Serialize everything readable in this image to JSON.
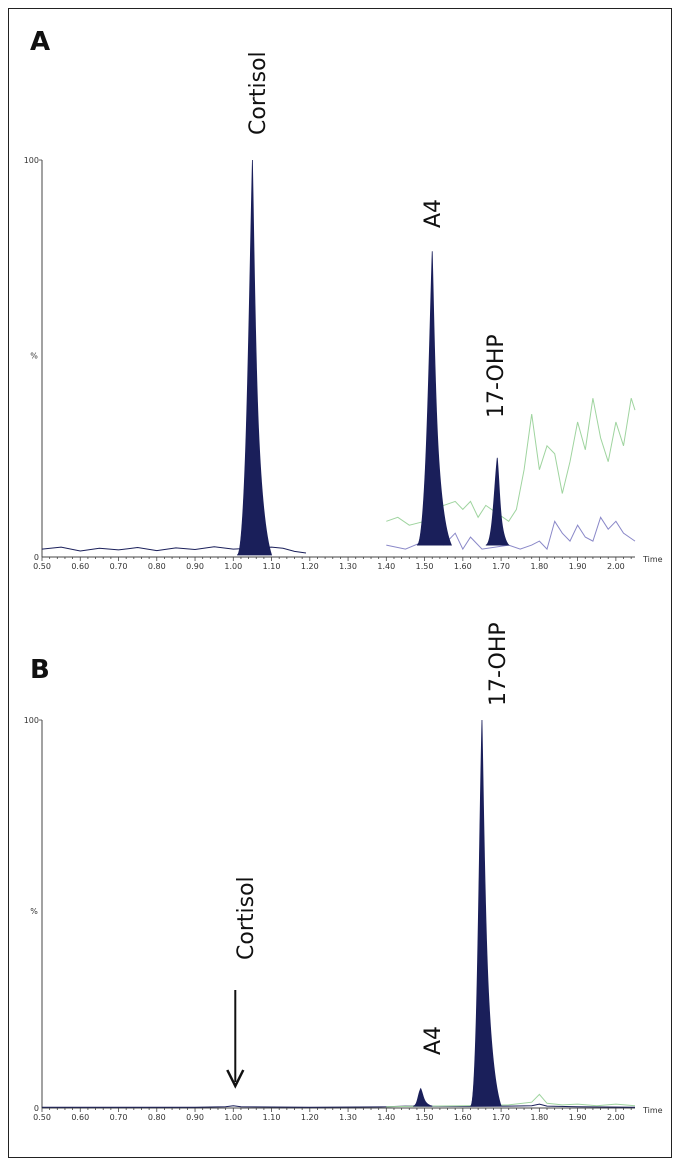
{
  "chart_data": [
    {
      "panel": "A",
      "type": "line",
      "xlabel": "Time",
      "ylabel": "%",
      "xlim": [
        0.5,
        2.05
      ],
      "ylim": [
        0,
        100
      ],
      "x_ticks": [
        "0.50",
        "0.60",
        "0.70",
        "0.80",
        "0.90",
        "1.00",
        "1.10",
        "1.20",
        "1.30",
        "1.40",
        "1.50",
        "1.60",
        "1.70",
        "1.80",
        "1.90",
        "2.00"
      ],
      "y_ticks": [
        "0",
        "100"
      ],
      "peaks": [
        {
          "label": "Cortisol",
          "rt": 1.05,
          "height": 100,
          "start": 1.01,
          "end": 1.1
        },
        {
          "label": "A4",
          "rt": 1.52,
          "height": 77,
          "start": 1.48,
          "end": 1.57
        },
        {
          "label": "17-OHP",
          "rt": 1.69,
          "height": 25,
          "start": 1.66,
          "end": 1.72
        }
      ],
      "series": [
        {
          "color": "#1a1f5a",
          "x": [
            0.5,
            0.55,
            0.6,
            0.65,
            0.7,
            0.75,
            0.8,
            0.85,
            0.9,
            0.95,
            1.0,
            1.1,
            1.13,
            1.16,
            1.19
          ],
          "y": [
            2,
            2.5,
            1.5,
            2.2,
            1.8,
            2.4,
            1.6,
            2.3,
            1.9,
            2.6,
            2.0,
            2.5,
            2.2,
            1.4,
            1.0
          ]
        },
        {
          "color": "#8a88c8",
          "x": [
            1.4,
            1.45,
            1.5,
            1.55,
            1.58,
            1.6,
            1.62,
            1.65,
            1.72,
            1.75,
            1.78,
            1.8,
            1.82,
            1.84,
            1.86,
            1.88,
            1.9,
            1.92,
            1.94,
            1.96,
            1.98,
            2.0,
            2.02,
            2.05
          ],
          "y": [
            3,
            2,
            4,
            3,
            6,
            2,
            5,
            2,
            3,
            2,
            3,
            4,
            2,
            9,
            6,
            4,
            8,
            5,
            4,
            10,
            7,
            9,
            6,
            4
          ]
        },
        {
          "color": "#9fd49f",
          "x": [
            1.4,
            1.43,
            1.46,
            1.5,
            1.55,
            1.58,
            1.6,
            1.62,
            1.64,
            1.66,
            1.72,
            1.74,
            1.76,
            1.78,
            1.8,
            1.82,
            1.84,
            1.86,
            1.88,
            1.9,
            1.92,
            1.94,
            1.96,
            1.98,
            2.0,
            2.02,
            2.04,
            2.05
          ],
          "y": [
            9,
            10,
            8,
            9,
            13,
            14,
            12,
            14,
            10,
            13,
            9,
            12,
            22,
            36,
            22,
            28,
            26,
            16,
            24,
            34,
            27,
            40,
            30,
            24,
            34,
            28,
            40,
            37
          ]
        }
      ]
    },
    {
      "panel": "B",
      "type": "line",
      "xlabel": "Time",
      "ylabel": "%",
      "xlim": [
        0.5,
        2.05
      ],
      "ylim": [
        0,
        100
      ],
      "x_ticks": [
        "0.50",
        "0.60",
        "0.70",
        "0.80",
        "0.90",
        "1.00",
        "1.10",
        "1.20",
        "1.30",
        "1.40",
        "1.50",
        "1.60",
        "1.70",
        "1.80",
        "1.90",
        "2.00"
      ],
      "y_ticks": [
        "0",
        "100"
      ],
      "peaks": [
        {
          "label": "A4",
          "rt": 1.49,
          "height": 5,
          "start": 1.47,
          "end": 1.52
        },
        {
          "label": "17-OHP",
          "rt": 1.65,
          "height": 100,
          "start": 1.62,
          "end": 1.7
        }
      ],
      "annotations": [
        {
          "label": "Cortisol",
          "rt": 1.0,
          "arrow": "down"
        }
      ],
      "series": [
        {
          "color": "#1a1f5a",
          "x": [
            0.5,
            0.7,
            0.9,
            0.98,
            1.0,
            1.02,
            1.2,
            1.4,
            1.45,
            1.6,
            1.72,
            1.78,
            1.8,
            1.82,
            1.9,
            2.05
          ],
          "y": [
            0.2,
            0.2,
            0.2,
            0.3,
            0.6,
            0.3,
            0.2,
            0.3,
            0.5,
            0.4,
            0.5,
            0.6,
            1.0,
            0.5,
            0.3,
            0.2
          ]
        },
        {
          "color": "#9fd49f",
          "x": [
            1.4,
            1.5,
            1.6,
            1.72,
            1.78,
            1.8,
            1.82,
            1.86,
            1.9,
            1.95,
            2.0,
            2.05
          ],
          "y": [
            0.3,
            0.5,
            0.6,
            0.8,
            1.5,
            3.5,
            1.2,
            0.8,
            1.0,
            0.6,
            1.0,
            0.6
          ]
        }
      ]
    }
  ]
}
